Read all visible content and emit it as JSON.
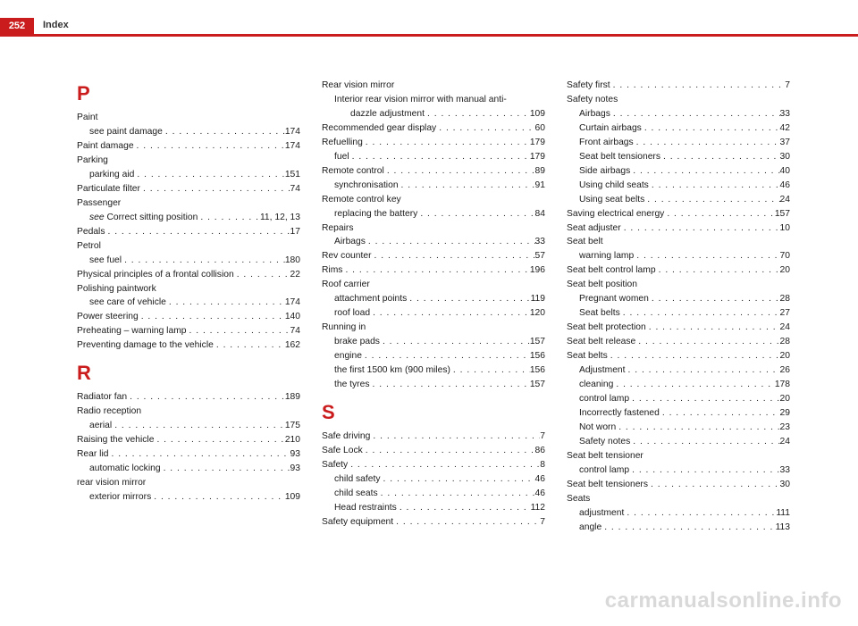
{
  "page_number": "252",
  "header": "Index",
  "watermark": "carmanualsonline.info",
  "colors": {
    "accent": "#ca1c1c",
    "text": "#1a1a1a",
    "watermark": "#d9d9d9",
    "background": "#ffffff"
  },
  "columns": [
    {
      "sections": [
        {
          "letter": "P",
          "entries": [
            {
              "label": "Paint",
              "page": "",
              "sub": false,
              "nopage": true
            },
            {
              "label": "see paint damage",
              "page": "174",
              "sub": true
            },
            {
              "label": "Paint damage",
              "page": "174",
              "sub": false
            },
            {
              "label": "Parking",
              "page": "",
              "sub": false,
              "nopage": true
            },
            {
              "label": "parking aid",
              "page": "151",
              "sub": true
            },
            {
              "label": "Particulate filter",
              "page": "74",
              "sub": false
            },
            {
              "label": "Passenger",
              "page": "",
              "sub": false,
              "nopage": true
            },
            {
              "label": "<i>see</i> Correct sitting position",
              "page": "11, 12, 13",
              "sub": true
            },
            {
              "label": "Pedals",
              "page": "17",
              "sub": false
            },
            {
              "label": "Petrol",
              "page": "",
              "sub": false,
              "nopage": true
            },
            {
              "label": "see fuel",
              "page": "180",
              "sub": true
            },
            {
              "label": "Physical principles of a frontal collision",
              "page": "22",
              "sub": false
            },
            {
              "label": "Polishing paintwork",
              "page": "",
              "sub": false,
              "nopage": true
            },
            {
              "label": "see care of vehicle",
              "page": "174",
              "sub": true
            },
            {
              "label": "Power steering",
              "page": "140",
              "sub": false
            },
            {
              "label": "Preheating – warning lamp",
              "page": "74",
              "sub": false
            },
            {
              "label": "Preventing damage to the vehicle",
              "page": "162",
              "sub": false
            }
          ]
        },
        {
          "letter": "R",
          "entries": [
            {
              "label": "Radiator fan",
              "page": "189",
              "sub": false
            },
            {
              "label": "Radio reception",
              "page": "",
              "sub": false,
              "nopage": true
            },
            {
              "label": "aerial",
              "page": "175",
              "sub": true
            },
            {
              "label": "Raising the vehicle",
              "page": "210",
              "sub": false
            },
            {
              "label": "Rear lid",
              "page": "93",
              "sub": false
            },
            {
              "label": "automatic locking",
              "page": "93",
              "sub": true
            },
            {
              "label": "rear vision mirror",
              "page": "",
              "sub": false,
              "nopage": true
            },
            {
              "label": "exterior mirrors",
              "page": "109",
              "sub": true
            }
          ]
        }
      ]
    },
    {
      "sections": [
        {
          "letter": "",
          "entries": [
            {
              "label": "Rear vision mirror",
              "page": "",
              "sub": false,
              "nopage": true
            },
            {
              "label": "Interior rear vision mirror with manual anti-",
              "page": "",
              "sub": true,
              "nopage": true
            },
            {
              "label": "dazzle adjustment",
              "page": "109",
              "sub": true,
              "deep": true
            },
            {
              "label": "Recommended gear display",
              "page": "60",
              "sub": false
            },
            {
              "label": "Refuelling",
              "page": "179",
              "sub": false
            },
            {
              "label": "fuel",
              "page": "179",
              "sub": true
            },
            {
              "label": "Remote control",
              "page": "89",
              "sub": false
            },
            {
              "label": "synchronisation",
              "page": "91",
              "sub": true
            },
            {
              "label": "Remote control key",
              "page": "",
              "sub": false,
              "nopage": true
            },
            {
              "label": "replacing the battery",
              "page": "84",
              "sub": true
            },
            {
              "label": "Repairs",
              "page": "",
              "sub": false,
              "nopage": true
            },
            {
              "label": "Airbags",
              "page": "33",
              "sub": true
            },
            {
              "label": "Rev counter",
              "page": "57",
              "sub": false
            },
            {
              "label": "Rims",
              "page": "196",
              "sub": false
            },
            {
              "label": "Roof carrier",
              "page": "",
              "sub": false,
              "nopage": true
            },
            {
              "label": "attachment points",
              "page": "119",
              "sub": true
            },
            {
              "label": "roof load",
              "page": "120",
              "sub": true
            },
            {
              "label": "Running in",
              "page": "",
              "sub": false,
              "nopage": true
            },
            {
              "label": "brake pads",
              "page": "157",
              "sub": true
            },
            {
              "label": "engine",
              "page": "156",
              "sub": true
            },
            {
              "label": "the first 1500 km (900 miles)",
              "page": "156",
              "sub": true
            },
            {
              "label": "the tyres",
              "page": "157",
              "sub": true
            }
          ]
        },
        {
          "letter": "S",
          "entries": [
            {
              "label": "Safe driving",
              "page": "7",
              "sub": false
            },
            {
              "label": "Safe Lock",
              "page": "86",
              "sub": false
            },
            {
              "label": "Safety",
              "page": "8",
              "sub": false
            },
            {
              "label": "child safety",
              "page": "46",
              "sub": true
            },
            {
              "label": "child seats",
              "page": "46",
              "sub": true
            },
            {
              "label": "Head restraints",
              "page": "112",
              "sub": true
            },
            {
              "label": "Safety equipment",
              "page": "7",
              "sub": false
            }
          ]
        }
      ]
    },
    {
      "sections": [
        {
          "letter": "",
          "entries": [
            {
              "label": "Safety first",
              "page": "7",
              "sub": false
            },
            {
              "label": "Safety notes",
              "page": "",
              "sub": false,
              "nopage": true
            },
            {
              "label": "Airbags",
              "page": "33",
              "sub": true
            },
            {
              "label": "Curtain airbags",
              "page": "42",
              "sub": true
            },
            {
              "label": "Front airbags",
              "page": "37",
              "sub": true
            },
            {
              "label": "Seat belt tensioners",
              "page": "30",
              "sub": true
            },
            {
              "label": "Side airbags",
              "page": "40",
              "sub": true
            },
            {
              "label": "Using child seats",
              "page": "46",
              "sub": true
            },
            {
              "label": "Using seat belts",
              "page": "24",
              "sub": true
            },
            {
              "label": "Saving electrical energy",
              "page": "157",
              "sub": false
            },
            {
              "label": "Seat adjuster",
              "page": "10",
              "sub": false
            },
            {
              "label": "Seat belt",
              "page": "",
              "sub": false,
              "nopage": true
            },
            {
              "label": "warning lamp",
              "page": "70",
              "sub": true
            },
            {
              "label": "Seat belt control lamp",
              "page": "20",
              "sub": false
            },
            {
              "label": "Seat belt position",
              "page": "",
              "sub": false,
              "nopage": true
            },
            {
              "label": "Pregnant women",
              "page": "28",
              "sub": true
            },
            {
              "label": "Seat belts",
              "page": "27",
              "sub": true
            },
            {
              "label": "Seat belt protection",
              "page": "24",
              "sub": false
            },
            {
              "label": "Seat belt release",
              "page": "28",
              "sub": false
            },
            {
              "label": "Seat belts",
              "page": "20",
              "sub": false
            },
            {
              "label": "Adjustment",
              "page": "26",
              "sub": true
            },
            {
              "label": "cleaning",
              "page": "178",
              "sub": true
            },
            {
              "label": "control lamp",
              "page": "20",
              "sub": true
            },
            {
              "label": "Incorrectly fastened",
              "page": "29",
              "sub": true
            },
            {
              "label": "Not worn",
              "page": "23",
              "sub": true
            },
            {
              "label": "Safety notes",
              "page": "24",
              "sub": true
            },
            {
              "label": "Seat belt tensioner",
              "page": "",
              "sub": false,
              "nopage": true
            },
            {
              "label": "control lamp",
              "page": "33",
              "sub": true
            },
            {
              "label": "Seat belt tensioners",
              "page": "30",
              "sub": false
            },
            {
              "label": "Seats",
              "page": "",
              "sub": false,
              "nopage": true
            },
            {
              "label": "adjustment",
              "page": "111",
              "sub": true
            },
            {
              "label": "angle",
              "page": "113",
              "sub": true
            }
          ]
        }
      ]
    }
  ]
}
